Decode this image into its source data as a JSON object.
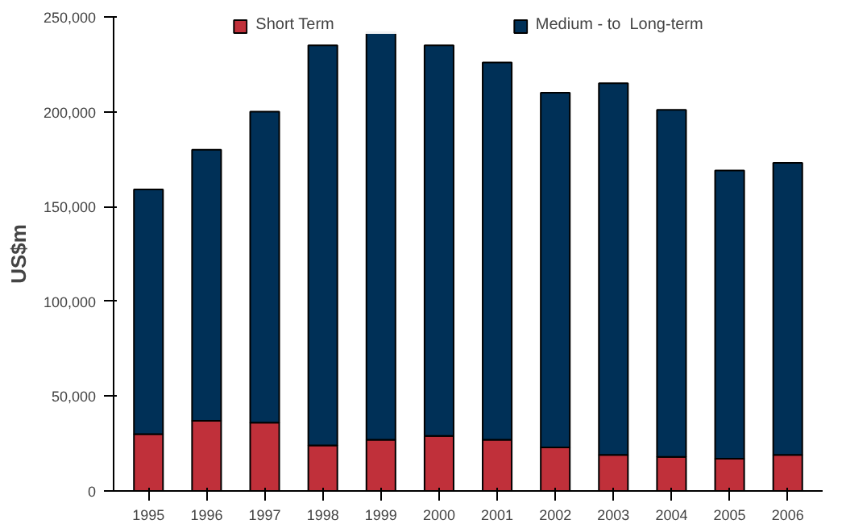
{
  "chart_data": {
    "type": "bar",
    "stacked": true,
    "ylabel": "US$m",
    "categories": [
      "1995",
      "1996",
      "1997",
      "1998",
      "1999",
      "2000",
      "2001",
      "2002",
      "2003",
      "2004",
      "2005",
      "2006"
    ],
    "series": [
      {
        "name": "Short Term",
        "color": "#c0303a",
        "values": [
          30000,
          37000,
          36000,
          24000,
          27000,
          29000,
          27000,
          23000,
          19000,
          18000,
          17000,
          19000
        ]
      },
      {
        "name": "Medium - to  Long-term",
        "color": "#003057",
        "values": [
          129000,
          143000,
          164000,
          211000,
          215000,
          206000,
          199000,
          187000,
          196000,
          183000,
          152000,
          154000
        ]
      }
    ],
    "ylim": [
      0,
      250000
    ],
    "yticks": [
      {
        "value": 0,
        "label": "0"
      },
      {
        "value": 50000,
        "label": "50,000"
      },
      {
        "value": 100000,
        "label": "100,000"
      },
      {
        "value": 150000,
        "label": "150,000"
      },
      {
        "value": 200000,
        "label": "200,000"
      },
      {
        "value": 250000,
        "label": "250,000"
      }
    ],
    "grid": false,
    "legend": "top"
  }
}
